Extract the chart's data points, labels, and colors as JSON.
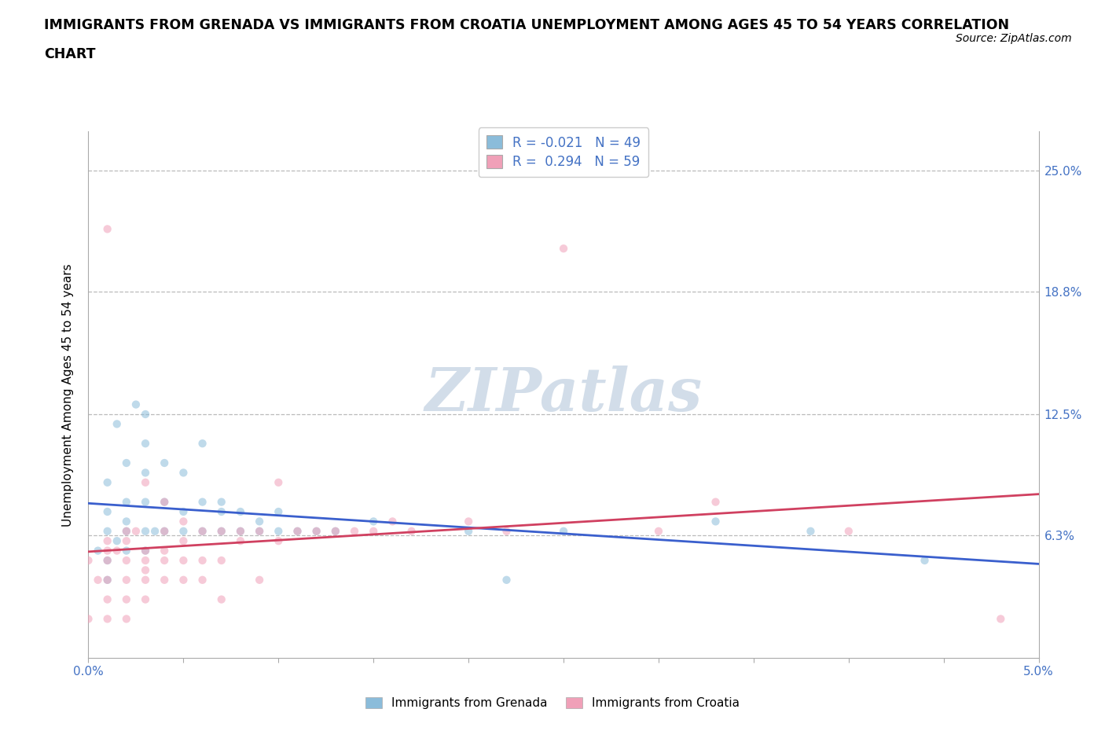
{
  "title_line1": "IMMIGRANTS FROM GRENADA VS IMMIGRANTS FROM CROATIA UNEMPLOYMENT AMONG AGES 45 TO 54 YEARS CORRELATION",
  "title_line2": "CHART",
  "source": "Source: ZipAtlas.com",
  "ylabel": "Unemployment Among Ages 45 to 54 years",
  "xlim": [
    0.0,
    0.05
  ],
  "ylim": [
    0.0,
    0.27
  ],
  "yticks": [
    0.063,
    0.125,
    0.188,
    0.25
  ],
  "ytick_labels": [
    "6.3%",
    "12.5%",
    "18.8%",
    "25.0%"
  ],
  "xtick_positions": [
    0.0,
    0.005,
    0.01,
    0.015,
    0.02,
    0.025,
    0.03,
    0.035,
    0.04,
    0.045,
    0.05
  ],
  "xtick_labels": [
    "0.0%",
    "",
    "",
    "",
    "",
    "",
    "",
    "",
    "",
    "",
    "5.0%"
  ],
  "grenada_color": "#8bbcda",
  "croatia_color": "#f0a0b8",
  "grenada_R": -0.021,
  "grenada_N": 49,
  "croatia_R": 0.294,
  "croatia_N": 59,
  "grenada_line_color": "#3a5fcd",
  "croatia_line_color": "#d04060",
  "croatia_line_style": "solid",
  "grenada_line_style": "solid",
  "watermark": "ZIPatlas",
  "watermark_color": "#c0cfe0",
  "legend_label_grenada": "Immigrants from Grenada",
  "legend_label_croatia": "Immigrants from Croatia",
  "scatter_alpha": 0.55,
  "scatter_size": 55,
  "grenada_x": [
    0.0005,
    0.001,
    0.001,
    0.001,
    0.001,
    0.001,
    0.0015,
    0.0015,
    0.002,
    0.002,
    0.002,
    0.002,
    0.002,
    0.0025,
    0.003,
    0.003,
    0.003,
    0.003,
    0.003,
    0.003,
    0.0035,
    0.004,
    0.004,
    0.004,
    0.005,
    0.005,
    0.005,
    0.006,
    0.006,
    0.006,
    0.007,
    0.007,
    0.007,
    0.008,
    0.008,
    0.009,
    0.009,
    0.01,
    0.01,
    0.011,
    0.012,
    0.013,
    0.015,
    0.02,
    0.022,
    0.025,
    0.033,
    0.038,
    0.044
  ],
  "grenada_y": [
    0.055,
    0.04,
    0.05,
    0.065,
    0.075,
    0.09,
    0.06,
    0.12,
    0.055,
    0.065,
    0.07,
    0.08,
    0.1,
    0.13,
    0.055,
    0.065,
    0.08,
    0.095,
    0.11,
    0.125,
    0.065,
    0.065,
    0.08,
    0.1,
    0.065,
    0.075,
    0.095,
    0.065,
    0.08,
    0.11,
    0.065,
    0.075,
    0.08,
    0.065,
    0.075,
    0.065,
    0.07,
    0.065,
    0.075,
    0.065,
    0.065,
    0.065,
    0.07,
    0.065,
    0.04,
    0.065,
    0.07,
    0.065,
    0.05
  ],
  "croatia_x": [
    0.0,
    0.0,
    0.0005,
    0.001,
    0.001,
    0.001,
    0.001,
    0.001,
    0.001,
    0.001,
    0.0015,
    0.002,
    0.002,
    0.002,
    0.002,
    0.002,
    0.002,
    0.0025,
    0.003,
    0.003,
    0.003,
    0.003,
    0.003,
    0.003,
    0.004,
    0.004,
    0.004,
    0.004,
    0.004,
    0.005,
    0.005,
    0.005,
    0.005,
    0.006,
    0.006,
    0.006,
    0.007,
    0.007,
    0.007,
    0.008,
    0.008,
    0.009,
    0.009,
    0.01,
    0.01,
    0.011,
    0.012,
    0.013,
    0.014,
    0.015,
    0.016,
    0.017,
    0.02,
    0.022,
    0.025,
    0.03,
    0.033,
    0.04,
    0.048
  ],
  "croatia_y": [
    0.02,
    0.05,
    0.04,
    0.02,
    0.03,
    0.04,
    0.05,
    0.055,
    0.06,
    0.22,
    0.055,
    0.02,
    0.03,
    0.04,
    0.05,
    0.06,
    0.065,
    0.065,
    0.03,
    0.04,
    0.045,
    0.05,
    0.055,
    0.09,
    0.04,
    0.05,
    0.055,
    0.065,
    0.08,
    0.04,
    0.05,
    0.06,
    0.07,
    0.04,
    0.05,
    0.065,
    0.03,
    0.05,
    0.065,
    0.06,
    0.065,
    0.04,
    0.065,
    0.06,
    0.09,
    0.065,
    0.065,
    0.065,
    0.065,
    0.065,
    0.07,
    0.065,
    0.07,
    0.065,
    0.21,
    0.065,
    0.08,
    0.065,
    0.02
  ]
}
